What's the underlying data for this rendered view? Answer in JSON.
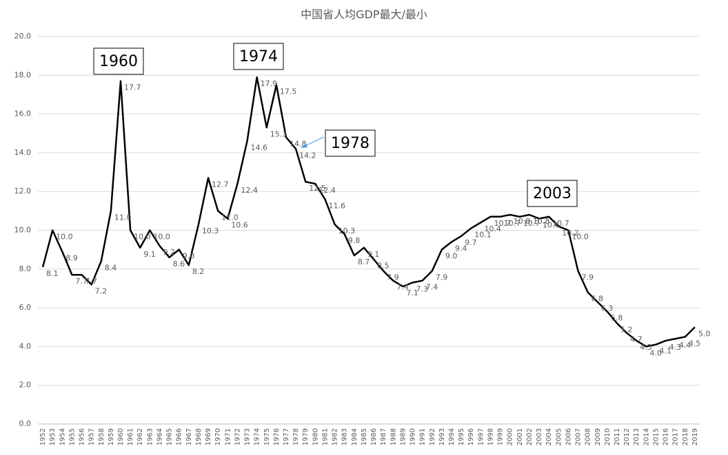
{
  "chart_data": {
    "type": "line",
    "title": "中国省人均GDP最大/最小",
    "categories": [
      "1952",
      "1953",
      "1954",
      "1955",
      "1956",
      "1957",
      "1958",
      "1959",
      "1960",
      "1961",
      "1962",
      "1963",
      "1964",
      "1965",
      "1966",
      "1967",
      "1968",
      "1969",
      "1970",
      "1971",
      "1972",
      "1973",
      "1974",
      "1975",
      "1976",
      "1977",
      "1978",
      "1979",
      "1980",
      "1981",
      "1982",
      "1983",
      "1984",
      "1985",
      "1986",
      "1987",
      "1988",
      "1989",
      "1990",
      "1991",
      "1992",
      "1993",
      "1994",
      "1995",
      "1996",
      "1997",
      "1998",
      "1999",
      "2000",
      "2001",
      "2002",
      "2003",
      "2004",
      "2005",
      "2006",
      "2007",
      "2008",
      "2009",
      "2010",
      "2011",
      "2012",
      "2013",
      "2014",
      "2015",
      "2016",
      "2017",
      "2018",
      "2019"
    ],
    "series": [
      {
        "color": "#000000",
        "values": [
          8.1,
          10,
          8.9,
          7.7,
          7.7,
          7.2,
          8.4,
          11,
          17.7,
          10,
          9.1,
          10,
          9.2,
          8.6,
          9,
          8.2,
          10.3,
          12.7,
          11,
          10.6,
          12.4,
          14.6,
          17.9,
          15.3,
          17.5,
          14.8,
          14.2,
          12.5,
          12.4,
          11.6,
          10.3,
          9.8,
          8.7,
          9.1,
          8.5,
          7.9,
          7.4,
          7.1,
          7.3,
          7.4,
          7.9,
          9,
          9.4,
          9.7,
          10.1,
          10.4,
          10.7,
          10.7,
          10.8,
          10.7,
          10.8,
          10.6,
          10.7,
          10.2,
          10,
          7.9,
          6.8,
          6.3,
          5.8,
          5.2,
          4.7,
          4.3,
          4,
          4.1,
          4.3,
          4.4,
          4.5,
          5
        ],
        "value_labels": [
          "8.1",
          "10.0",
          "8.9",
          "7.7",
          "7.7",
          "7.2",
          "8.4",
          "11.0",
          "17.7",
          "10.0",
          "9.1",
          "10.0",
          "9.2",
          "8.6",
          "9.0",
          "8.2",
          "10.3",
          "12.7",
          "11.0",
          "10.6",
          "12.4",
          "14.6",
          "17.9",
          "15.3",
          "17.5",
          "14.8",
          "14.2",
          "12.5",
          "12.4",
          "11.6",
          "10.3",
          "9.8",
          "8.7",
          "9.1",
          "8.5",
          "7.9",
          "7.4",
          "7.1",
          "7.3",
          "7.4",
          "7.9",
          "9.0",
          "9.4",
          "9.7",
          "10.1",
          "10.4",
          "10.7",
          "10.7",
          "10.8",
          "10.7",
          "10.8",
          "10.6",
          "10.7",
          "10.2",
          "10.0",
          "7.9",
          "6.8",
          "6.3",
          "5.8",
          "5.2",
          "4.7",
          "4.3",
          "4.0",
          "4.1",
          "4.3",
          "4.4",
          "4.5",
          "5.0"
        ]
      }
    ],
    "ylim": [
      0,
      20
    ],
    "yticks": [
      {
        "value": 0,
        "label": "0.0"
      },
      {
        "value": 2,
        "label": "2.0"
      },
      {
        "value": 4,
        "label": "4.0"
      },
      {
        "value": 6,
        "label": "6.0"
      },
      {
        "value": 8,
        "label": "8.0"
      },
      {
        "value": 10,
        "label": "10.0"
      },
      {
        "value": 12,
        "label": "12.0"
      },
      {
        "value": 14,
        "label": "14.0"
      },
      {
        "value": 16,
        "label": "16.0"
      },
      {
        "value": 18,
        "label": "18.0"
      },
      {
        "value": 20,
        "label": "20.0"
      }
    ],
    "grid": true,
    "annotations": [
      "1960",
      "1974",
      "1978",
      "2003"
    ]
  }
}
